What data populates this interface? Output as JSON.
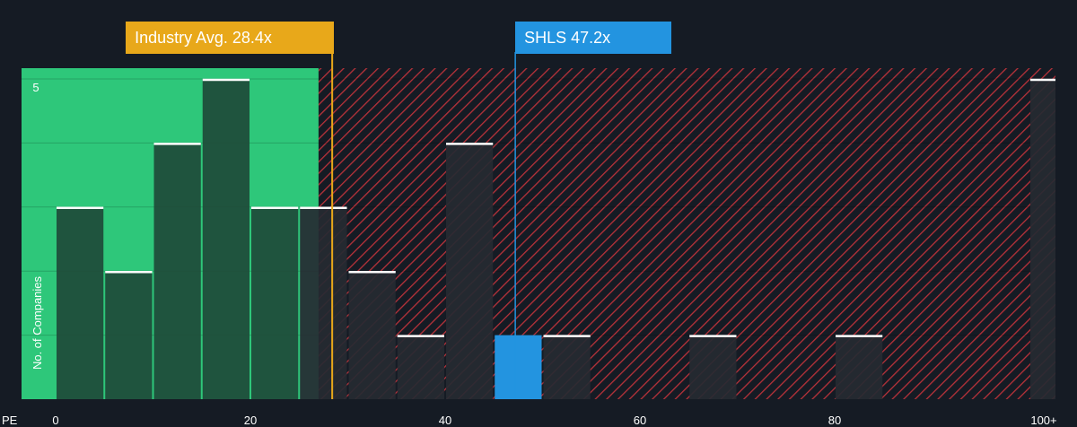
{
  "chart_data": {
    "type": "bar",
    "xlabel": "PE",
    "ylabel": "No. of Companies",
    "x_ticks": [
      "0",
      "20",
      "40",
      "60",
      "80",
      "100+"
    ],
    "y_ticks": [
      "5"
    ],
    "xlim": [
      -1,
      102
    ],
    "ylim": [
      0,
      5.2
    ],
    "bin_width": 5,
    "bins": [
      {
        "start": 0,
        "count": 3
      },
      {
        "start": 5,
        "count": 2
      },
      {
        "start": 10,
        "count": 4
      },
      {
        "start": 15,
        "count": 5
      },
      {
        "start": 20,
        "count": 3
      },
      {
        "start": 25,
        "count": 3
      },
      {
        "start": 30,
        "count": 2
      },
      {
        "start": 35,
        "count": 1
      },
      {
        "start": 40,
        "count": 4
      },
      {
        "start": 45,
        "count": 1,
        "highlight": true
      },
      {
        "start": 50,
        "count": 1
      },
      {
        "start": 65,
        "count": 1
      },
      {
        "start": 80,
        "count": 1
      },
      {
        "start": 100,
        "count": 5
      }
    ],
    "industry_avg": {
      "label": "Industry Avg. 28.4x",
      "value": 28.4
    },
    "company": {
      "label": "SHLS 47.2x",
      "ticker": "SHLS",
      "value": 47.2
    },
    "fair_zone_end": 27,
    "colors": {
      "background": "#151b24",
      "fair_zone": "#2ec77a",
      "bar_fair": "#1e4a38",
      "bar_over": "#262a32",
      "hatch": "#b8323a",
      "industry_line": "#e8a81a",
      "company": "#2394e0",
      "bar_cap": "#ffffff"
    }
  }
}
